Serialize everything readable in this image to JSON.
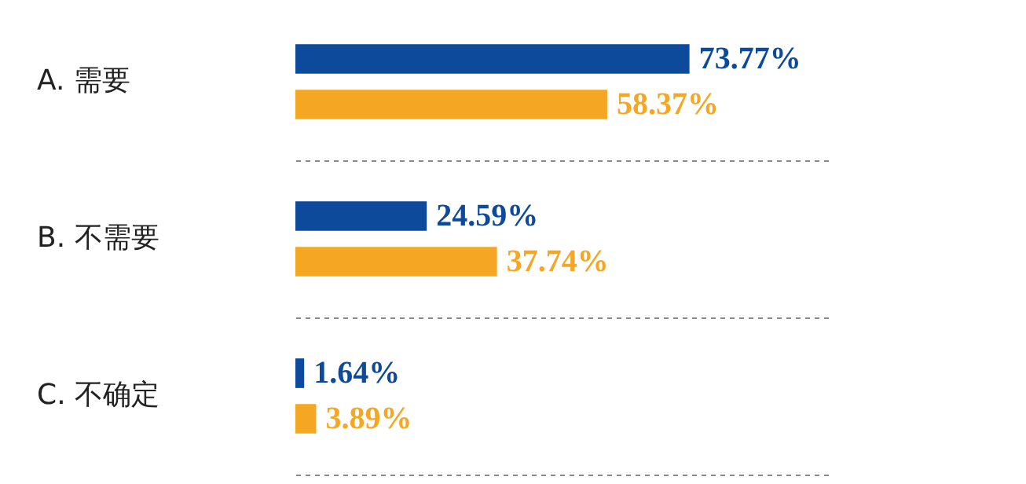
{
  "chart_data": {
    "type": "bar",
    "orientation": "horizontal",
    "categories": [
      "A. 需要",
      "B. 不需要",
      "C. 不确定"
    ],
    "series": [
      {
        "color": "#0d4a9c",
        "values": [
          73.77,
          24.59,
          1.64
        ],
        "value_labels": [
          "73.77%",
          "24.59%",
          "1.64%"
        ]
      },
      {
        "color": "#f5a623",
        "values": [
          58.37,
          37.74,
          3.89
        ],
        "value_labels": [
          "58.37%",
          "37.74%",
          "3.89%"
        ]
      }
    ],
    "xlim": [
      0,
      100
    ],
    "grid": "y",
    "tick_labels": "y"
  }
}
